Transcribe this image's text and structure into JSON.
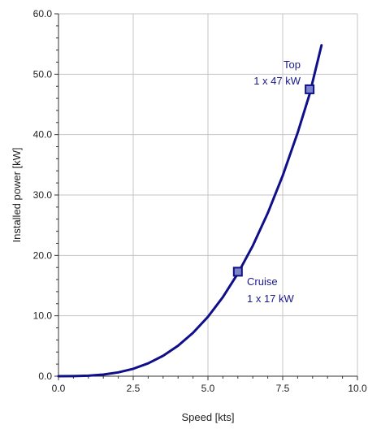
{
  "chart_data": {
    "type": "line",
    "title": "",
    "xlabel": "Speed [kts]",
    "ylabel": "Installed power [kW]",
    "xlim": [
      0,
      10
    ],
    "ylim": [
      0,
      60
    ],
    "xticks": [
      0,
      2.5,
      5,
      7.5,
      10
    ],
    "yticks": [
      0,
      10,
      20,
      30,
      40,
      50,
      60
    ],
    "xtick_labels": [
      "0.0",
      "2.5",
      "5.0",
      "7.5",
      "10.0"
    ],
    "ytick_labels": [
      "0.0",
      "10.0",
      "20.0",
      "30.0",
      "40.0",
      "50.0",
      "60.0"
    ],
    "grid": true,
    "series": [
      {
        "color": "#0f0f8a",
        "x": [
          0,
          0.5,
          1,
          1.5,
          2,
          2.5,
          3,
          3.5,
          4,
          4.5,
          5,
          5.5,
          6,
          6.5,
          7,
          7.5,
          8,
          8.4,
          8.8
        ],
        "y": [
          0,
          0.01,
          0.08,
          0.27,
          0.63,
          1.23,
          2.13,
          3.38,
          5.04,
          7.18,
          9.84,
          13.1,
          17.0,
          21.6,
          27.0,
          33.2,
          40.3,
          46.7,
          54.8
        ]
      }
    ],
    "markers": [
      {
        "name": "Cruise",
        "x": 6.0,
        "y": 17.3,
        "label_line1": "Cruise",
        "label_line2": "1 x 17 kW"
      },
      {
        "name": "Top",
        "x": 8.4,
        "y": 47.5,
        "label_line1": "Top",
        "label_line2": "1 x 47 kW"
      }
    ],
    "colors": {
      "line": "#0f0f8a",
      "marker_fill": "#7b86c9",
      "annotation": "#1a1a8c",
      "grid": "#c4c4c4"
    }
  }
}
